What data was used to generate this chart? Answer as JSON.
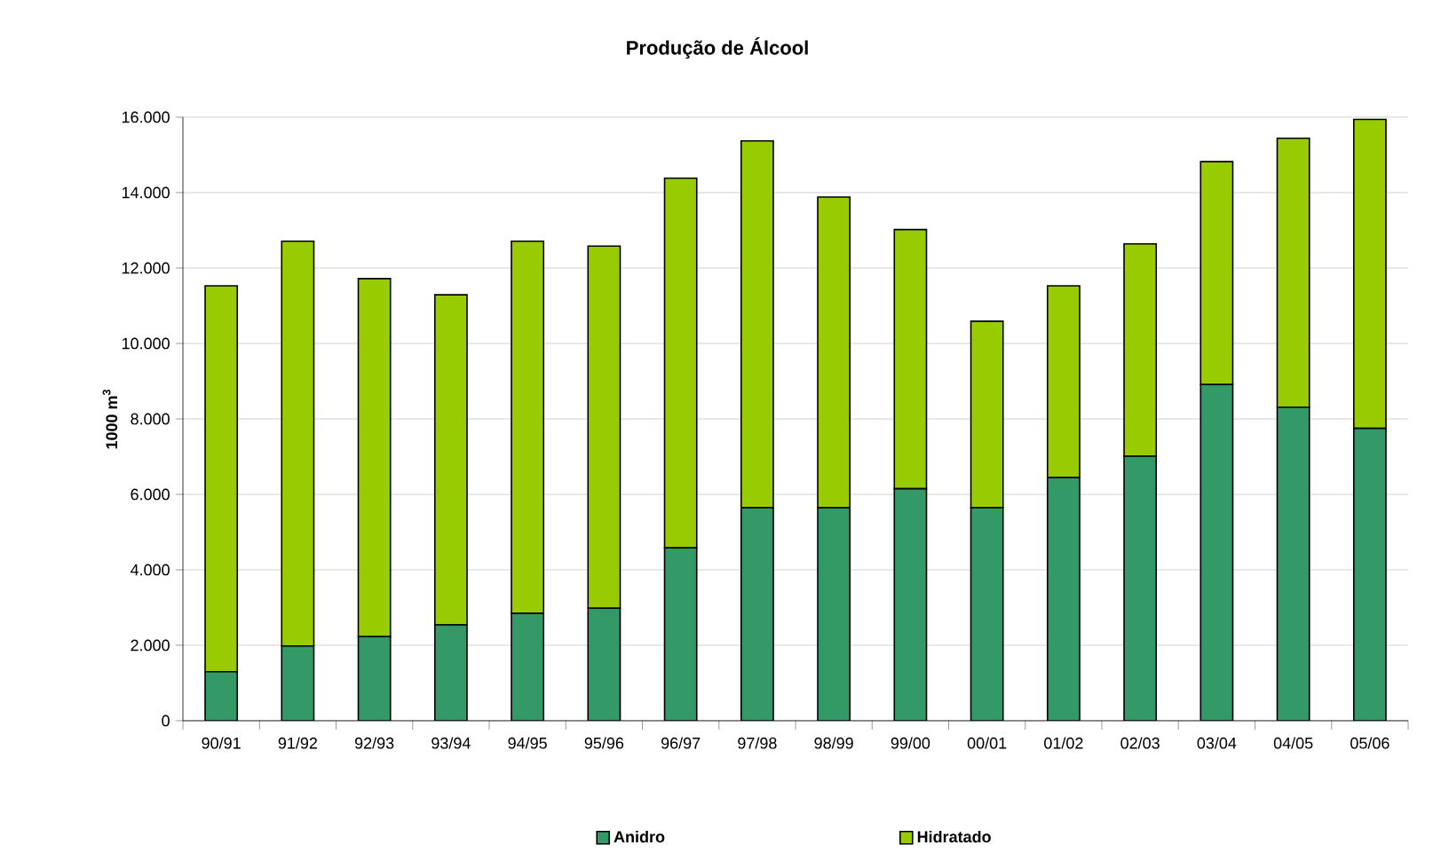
{
  "chart_data": {
    "type": "bar",
    "title": "Produção de Álcool",
    "ylabel": "1000 m$^{3}$",
    "categories": [
      "90/91",
      "91/92",
      "92/93",
      "93/94",
      "94/95",
      "95/96",
      "96/97",
      "97/98",
      "98/99",
      "99/00",
      "00/01",
      "01/02",
      "02/03",
      "03/04",
      "04/05",
      "05/06"
    ],
    "series": [
      {
        "name": "Anidro",
        "color": "#339966",
        "values": [
          1300,
          1980,
          2230,
          2540,
          2850,
          2980,
          4580,
          5650,
          5650,
          6150,
          5650,
          6450,
          7010,
          8910,
          8310,
          7750
        ]
      },
      {
        "name": "Hidratado",
        "color": "#99cc00",
        "values": [
          10230,
          10730,
          9490,
          8750,
          9860,
          9600,
          9800,
          9720,
          8230,
          6870,
          4940,
          5080,
          5630,
          5910,
          7130,
          8190
        ]
      }
    ],
    "stacked": true,
    "ylim": [
      0,
      16000
    ],
    "yticks": [
      0,
      {
        "value": 2000,
        "label": "2.000"
      },
      {
        "value": 4000,
        "label": "4.000"
      },
      {
        "value": 6000,
        "label": "6.000"
      },
      {
        "value": 8000,
        "label": "8.000"
      },
      {
        "value": 10000,
        "label": "10.000"
      },
      {
        "value": 12000,
        "label": "12.000"
      },
      {
        "value": 14000,
        "label": "14.000"
      },
      {
        "value": 16000,
        "label": "16.000"
      }
    ],
    "grid": "y",
    "legend": "bottom"
  }
}
